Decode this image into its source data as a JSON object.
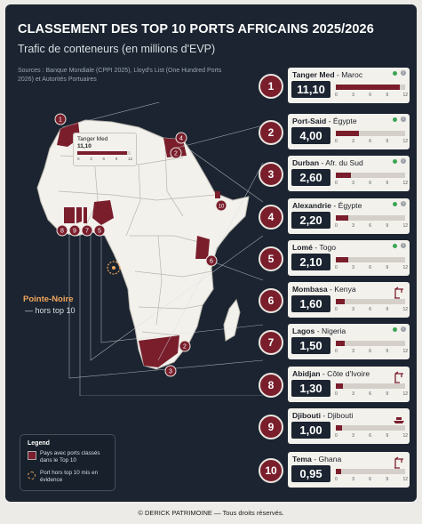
{
  "title": "CLASSEMENT DES TOP 10 PORTS AFRICAINS 2025/2026",
  "subtitle": "Trafic de conteneurs (en millions d'EVP)",
  "sources": "Sources : Banque Mondiale (CPPI 2025), Lloyd's List (One Hundred Ports 2026) et Autorités Portuaires",
  "callout": {
    "name": "Tanger Med",
    "value": "11,10",
    "fill": 0.925,
    "ticks": [
      "0",
      "3",
      "6",
      "9",
      "12"
    ]
  },
  "map_markers": [
    "1",
    "2",
    "3",
    "4",
    "5",
    "6",
    "7",
    "8",
    "10"
  ],
  "highlight": {
    "name": "Pointe-Noire",
    "note": "— hors top 10"
  },
  "legend": {
    "title": "Legend",
    "item1": "Pays avec ports classés dans le Top 10",
    "item2": "Port hors top 10 mis en évidence"
  },
  "ticks": [
    "0",
    "3",
    "6",
    "9",
    "12"
  ],
  "ports": [
    {
      "rank": "1",
      "name": "Tanger Med",
      "country": "Maroc",
      "value": "11,10",
      "num": 11.1,
      "icon": "status"
    },
    {
      "rank": "2",
      "name": "Port-Said",
      "country": "Égypte",
      "value": "4,00",
      "num": 4.0,
      "icon": "status"
    },
    {
      "rank": "3",
      "name": "Durban",
      "country": "Afr. du Sud",
      "value": "2,60",
      "num": 2.6,
      "icon": "status"
    },
    {
      "rank": "4",
      "name": "Alexandrie",
      "country": "Égypte",
      "value": "2,20",
      "num": 2.2,
      "icon": "status"
    },
    {
      "rank": "5",
      "name": "Lomé",
      "country": "Togo",
      "value": "2,10",
      "num": 2.1,
      "icon": "status"
    },
    {
      "rank": "6",
      "name": "Mombasa",
      "country": "Kenya",
      "value": "1,60",
      "num": 1.6,
      "icon": "crane"
    },
    {
      "rank": "7",
      "name": "Lagos",
      "country": "Nigeria",
      "value": "1,50",
      "num": 1.5,
      "icon": "status"
    },
    {
      "rank": "8",
      "name": "Abidjan",
      "country": "Côte d'Ivoire",
      "value": "1,30",
      "num": 1.3,
      "icon": "crane"
    },
    {
      "rank": "9",
      "name": "Djibouti",
      "country": "Djibouti",
      "value": "1,00",
      "num": 1.0,
      "icon": "ship"
    },
    {
      "rank": "10",
      "name": "Tema",
      "country": "Ghana",
      "value": "0,95",
      "num": 0.95,
      "icon": "crane"
    }
  ],
  "footer": "© DERICK PATRIMOINE — Tous droits réservés.",
  "colors": {
    "accent": "#7a1e2c",
    "panel": "#1b2430",
    "land": "#f3f1ec",
    "highlight": "#f0a65e"
  }
}
